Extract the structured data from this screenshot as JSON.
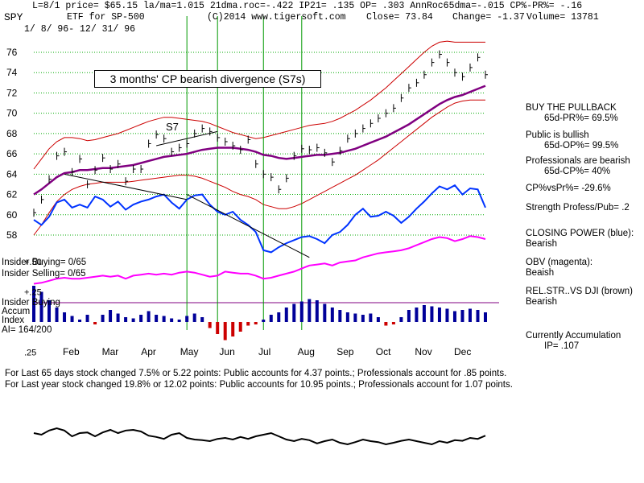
{
  "header": {
    "line1": "L=8/1  price= $65.15  la/ma=1.015 21dma.roc=-.422 IP21= .135 OP= .303 AnnRoc65dma=-.015 CP%-PR%= -.16",
    "symbol": "SPY",
    "etf_name": "ETF for SP-500",
    "copyright": "(C)2014 www.tigersoft.com",
    "close": "Close=  73.84",
    "change": "Change= -1.37",
    "volume": "Volume= 13781",
    "date_range": "1/ 8/ 96- 12/ 31/ 96"
  },
  "annotations": {
    "divergence": "3 months' CP bearish divergence (S7s)",
    "s7": "S7",
    "insider_buying_count": "Insider Buying= 0/65",
    "insider_selling_count": "Insider Selling= 0/65",
    "insider_buying": "Insider Buying",
    "accum": "Accum",
    "index": "Index",
    "ai": "AI= 164/200"
  },
  "right_panel": {
    "buy_title": "BUY THE PULLBACK",
    "pr": "65d-PR%= 69.5%",
    "public": "Public is bullish",
    "op": "65d-OP%= 99.5%",
    "pros": "Professionals are bearish",
    "cp": "65d-CP%= 40%",
    "cpvspr": "CP%vsPr%= -29.6%",
    "strength": "Strength Profess/Pub= .2",
    "cp_label": "CLOSING POWER (blue):",
    "cp_val": "Bearish",
    "obv_label": "OBV (magenta):",
    "obv_val": "Beaish",
    "rel_label": "REL.STR..VS DJI (brown)",
    "rel_val": "Bearish",
    "accum_label": "Currently Accumulation",
    "ip": "IP=  .107"
  },
  "bottom": {
    "line1": "For Last 65 days stock changed  7.5% or  5.22 points:  Public accounts for  4.37 points.;  Professionals account for  .85 points.",
    "line2": "For Last year stock changed  19.8% or  12.02 points:  Public accounts for  10.95 points.;  Professionals account for  1.07 points."
  },
  "colors": {
    "price": "#000000",
    "closing_power": "#0033ff",
    "obv": "#ff00ff",
    "ma": "#800080",
    "bands": "#cc0000",
    "signals": "#009900",
    "accum_pos": "#000099",
    "accum_neg": "#cc0000"
  },
  "chart_data": {
    "type": "line",
    "title": "",
    "months": [
      "Feb",
      "Mar",
      "Apr",
      "May",
      "Jun",
      "Jul",
      "Aug",
      "Sep",
      "Oct",
      "Nov",
      "Dec"
    ],
    "price_axis": {
      "ticks": [
        "76",
        "74",
        "72",
        "70",
        "68",
        "66",
        "64",
        "62",
        "60",
        "58"
      ],
      "ylim": [
        57,
        77
      ]
    },
    "accum_axis": {
      "ticks": [
        "+.50",
        "+.25",
        ".25"
      ]
    },
    "series": [
      {
        "key": "price",
        "values": [
          60.2,
          61.5,
          63.5,
          65.8,
          66.2,
          64.2,
          65.5,
          63.0,
          64.4,
          65.6,
          64.5,
          65.0,
          63.3,
          64.5,
          64.5,
          67.0,
          67.9,
          67.5,
          66.2,
          66.6,
          67.0,
          68.0,
          68.5,
          68.2,
          67.6,
          67.2,
          66.8,
          66.4,
          67.4,
          65.0,
          64.0,
          63.7,
          62.5,
          63.6,
          65.8,
          66.5,
          66.4,
          66.6,
          66.1,
          65.2,
          66.3,
          67.5,
          68.0,
          68.5,
          69.0,
          69.5,
          70.0,
          70.5,
          71.5,
          72.5,
          73.0,
          73.8,
          75.0,
          75.8,
          75.0,
          74.0,
          73.6,
          74.5,
          75.5,
          73.8
        ]
      },
      {
        "key": "ma",
        "values": [
          62.0,
          62.5,
          63.1,
          63.7,
          64.1,
          64.2,
          64.4,
          64.4,
          64.5,
          64.6,
          64.6,
          64.7,
          64.8,
          64.9,
          65.1,
          65.3,
          65.5,
          65.7,
          65.8,
          65.9,
          66.0,
          66.2,
          66.4,
          66.5,
          66.6,
          66.6,
          66.6,
          66.5,
          66.4,
          66.2,
          65.9,
          65.8,
          65.6,
          65.5,
          65.6,
          65.7,
          65.8,
          65.9,
          65.9,
          66.0,
          66.1,
          66.3,
          66.5,
          66.8,
          67.1,
          67.4,
          67.7,
          68.1,
          68.5,
          68.9,
          69.4,
          69.9,
          70.4,
          70.9,
          71.3,
          71.6,
          71.8,
          72.1,
          72.4,
          72.7
        ]
      },
      {
        "key": "upper_band",
        "values": [
          64.5,
          65.5,
          66.5,
          67.2,
          67.6,
          67.6,
          67.5,
          67.3,
          67.4,
          67.6,
          67.8,
          68.0,
          68.3,
          68.6,
          68.9,
          69.2,
          69.4,
          69.6,
          69.6,
          69.5,
          69.4,
          69.3,
          69.2,
          69.0,
          68.7,
          68.4,
          68.1,
          67.9,
          67.7,
          67.5,
          67.6,
          67.8,
          68.0,
          68.2,
          68.4,
          68.6,
          68.8,
          68.9,
          69.0,
          69.2,
          69.5,
          69.9,
          70.3,
          70.8,
          71.3,
          71.9,
          72.5,
          73.2,
          73.9,
          74.6,
          75.3,
          76.0,
          76.6,
          77.0,
          77.1,
          77.0,
          77.0,
          77.0,
          77.0,
          77.0
        ]
      },
      {
        "key": "lower_band",
        "values": [
          58.0,
          59.0,
          60.2,
          61.3,
          62.0,
          62.5,
          62.8,
          63.0,
          63.1,
          63.2,
          63.2,
          63.2,
          63.2,
          63.3,
          63.4,
          63.5,
          63.6,
          63.7,
          63.8,
          63.9,
          63.9,
          63.8,
          63.6,
          63.3,
          63.0,
          62.7,
          62.3,
          62.0,
          61.8,
          61.5,
          61.0,
          60.8,
          60.6,
          60.6,
          60.8,
          61.1,
          61.5,
          61.9,
          62.3,
          62.7,
          63.1,
          63.5,
          63.9,
          64.4,
          64.9,
          65.4,
          66.0,
          66.6,
          67.2,
          67.8,
          68.4,
          69.0,
          69.6,
          70.1,
          70.6,
          71.0,
          71.2,
          71.3,
          71.3,
          71.3
        ]
      },
      {
        "key": "closing_power",
        "values": [
          59.5,
          59.0,
          59.8,
          61.2,
          61.5,
          60.7,
          61.0,
          60.7,
          61.8,
          61.5,
          60.8,
          61.3,
          60.5,
          61.0,
          61.3,
          61.5,
          61.8,
          62.0,
          61.2,
          60.6,
          61.5,
          61.9,
          62.0,
          61.0,
          60.3,
          60.0,
          60.3,
          59.5,
          59.0,
          58.3,
          56.5,
          56.3,
          56.8,
          57.2,
          57.5,
          57.8,
          57.9,
          57.6,
          57.2,
          58.0,
          58.3,
          59.0,
          60.0,
          60.6,
          59.8,
          59.9,
          60.3,
          59.9,
          59.2,
          59.8,
          60.6,
          61.3,
          62.1,
          62.8,
          62.5,
          62.9,
          62.0,
          62.6,
          62.5,
          60.7
        ]
      },
      {
        "key": "obv",
        "values": [
          53.2,
          53.3,
          53.5,
          53.7,
          53.8,
          53.7,
          53.7,
          53.8,
          53.9,
          54.0,
          53.9,
          54.0,
          53.7,
          54.0,
          54.1,
          54.2,
          54.1,
          54.2,
          54.1,
          54.3,
          54.4,
          54.3,
          54.1,
          53.9,
          54.0,
          54.4,
          54.3,
          54.2,
          54.2,
          54.0,
          53.7,
          53.8,
          54.0,
          54.2,
          54.4,
          54.7,
          55.0,
          55.1,
          55.2,
          55.0,
          55.3,
          55.4,
          55.5,
          55.8,
          56.0,
          56.2,
          56.3,
          56.4,
          56.5,
          56.7,
          57.0,
          57.3,
          57.6,
          57.8,
          57.7,
          57.4,
          57.6,
          57.9,
          57.8,
          57.6
        ]
      },
      {
        "key": "rel_strength",
        "values": [
          -0.8,
          -0.75,
          -0.88,
          -0.95,
          -0.88,
          -0.7,
          -0.8,
          -0.82,
          -0.7,
          -0.82,
          -0.9,
          -0.8,
          -0.88,
          -0.9,
          -0.85,
          -0.72,
          -0.68,
          -0.62,
          -0.75,
          -0.8,
          -0.65,
          -0.6,
          -0.58,
          -0.55,
          -0.62,
          -0.65,
          -0.6,
          -0.68,
          -0.62,
          -0.7,
          -0.75,
          -0.8,
          -0.7,
          -0.6,
          -0.55,
          -0.62,
          -0.58,
          -0.48,
          -0.55,
          -0.6,
          -0.5,
          -0.45,
          -0.52,
          -0.6,
          -0.55,
          -0.52,
          -0.45,
          -0.5,
          -0.56,
          -0.6,
          -0.55,
          -0.5,
          -0.45,
          -0.55,
          -0.5,
          -0.58,
          -0.56,
          -0.65,
          -0.62,
          -0.72
        ]
      },
      {
        "key": "accumulation_index",
        "values": [
          0.3,
          0.25,
          0.18,
          0.12,
          0.08,
          0.05,
          0.02,
          0.06,
          -0.02,
          0.06,
          0.1,
          0.07,
          0.04,
          0.03,
          0.06,
          0.09,
          0.06,
          0.05,
          0.03,
          0.02,
          0.05,
          0.07,
          0.04,
          -0.05,
          -0.1,
          -0.15,
          -0.12,
          -0.08,
          -0.03,
          -0.02,
          0.02,
          0.06,
          0.08,
          0.12,
          0.15,
          0.17,
          0.19,
          0.18,
          0.15,
          0.12,
          0.1,
          0.08,
          0.07,
          0.06,
          0.07,
          0.04,
          -0.03,
          -0.02,
          0.04,
          0.1,
          0.12,
          0.14,
          0.13,
          0.12,
          0.11,
          0.09,
          0.1,
          0.11,
          0.1,
          0.08
        ]
      }
    ],
    "signals_x_index": [
      20,
      24,
      30,
      35
    ]
  }
}
